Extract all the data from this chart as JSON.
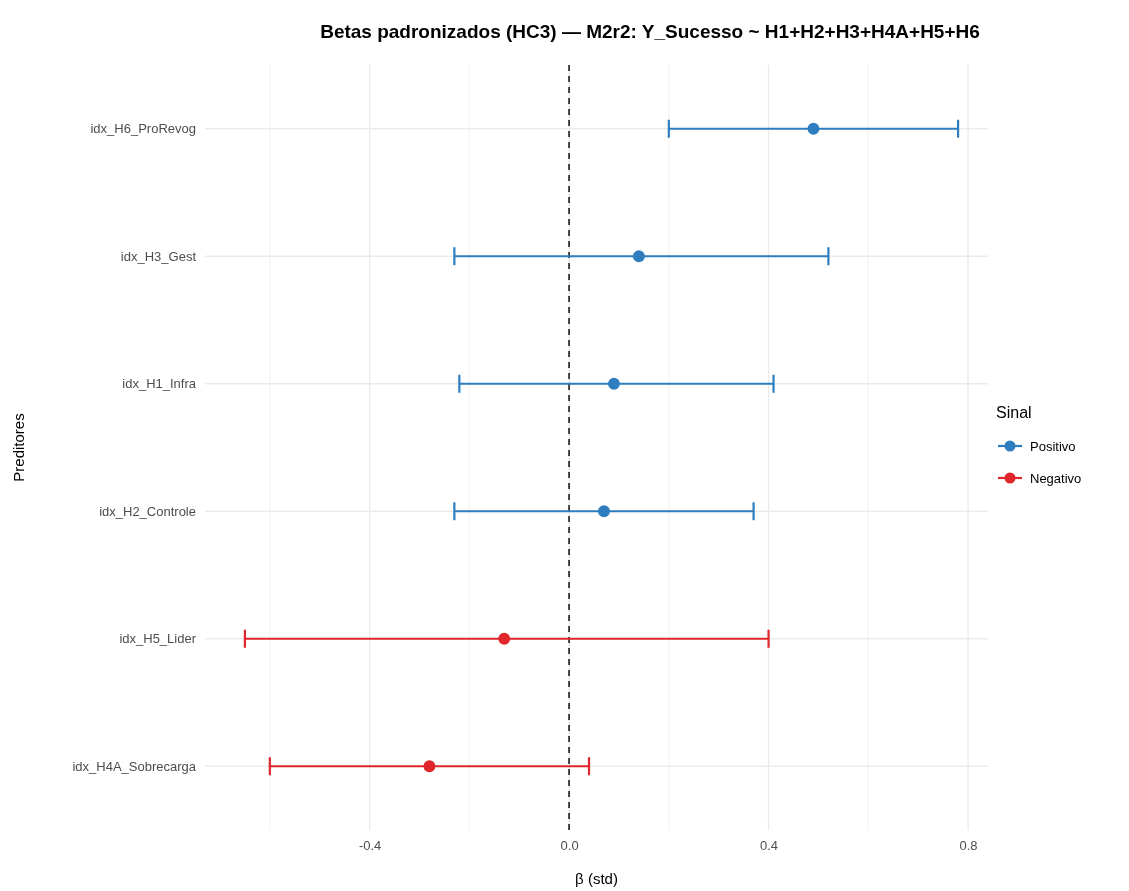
{
  "chart_data": {
    "type": "scatter",
    "orientation": "horizontal",
    "title": "Betas padronizados (HC3) — M2r2: Y_Sucesso ~ H1+H2+H3+H4A+H5+H6",
    "xlabel": "β (std)",
    "ylabel": "Preditores",
    "legend_title": "Sinal",
    "legend": "right",
    "grid": true,
    "marker": "circle",
    "categories": [
      "idx_H6_ProRevog",
      "idx_H3_Gest",
      "idx_H1_Infra",
      "idx_H2_Controle",
      "idx_H5_Lider",
      "idx_H4A_Sobrecarga"
    ],
    "xlim": [
      -0.73,
      0.84
    ],
    "xticks": [
      {
        "value": -0.6,
        "label": null
      },
      -0.4,
      {
        "value": -0.2,
        "label": null
      },
      {
        "value": 0,
        "label": "0.0"
      },
      {
        "value": 0.2,
        "label": null
      },
      0.4,
      {
        "value": 0.6,
        "label": null
      },
      0.8
    ],
    "ref_lines": [
      {
        "axis": "x",
        "value": 0,
        "line_style": "dashed",
        "color": "#333333"
      }
    ],
    "series": [
      {
        "name": "Positivo",
        "color": "#2e7ebf",
        "values": [
          0.49,
          0.14,
          0.09,
          0.07,
          null,
          null
        ],
        "errors": [
          [
            0.2,
            0.78
          ],
          [
            -0.23,
            0.52
          ],
          [
            -0.22,
            0.41
          ],
          [
            -0.23,
            0.37
          ],
          null,
          null
        ]
      },
      {
        "name": "Negativo",
        "color": "#e0262a",
        "values": [
          null,
          null,
          null,
          null,
          -0.13,
          -0.28
        ],
        "errors": [
          null,
          null,
          null,
          null,
          [
            -0.65,
            0.4
          ],
          [
            -0.6,
            0.04
          ]
        ]
      }
    ]
  }
}
